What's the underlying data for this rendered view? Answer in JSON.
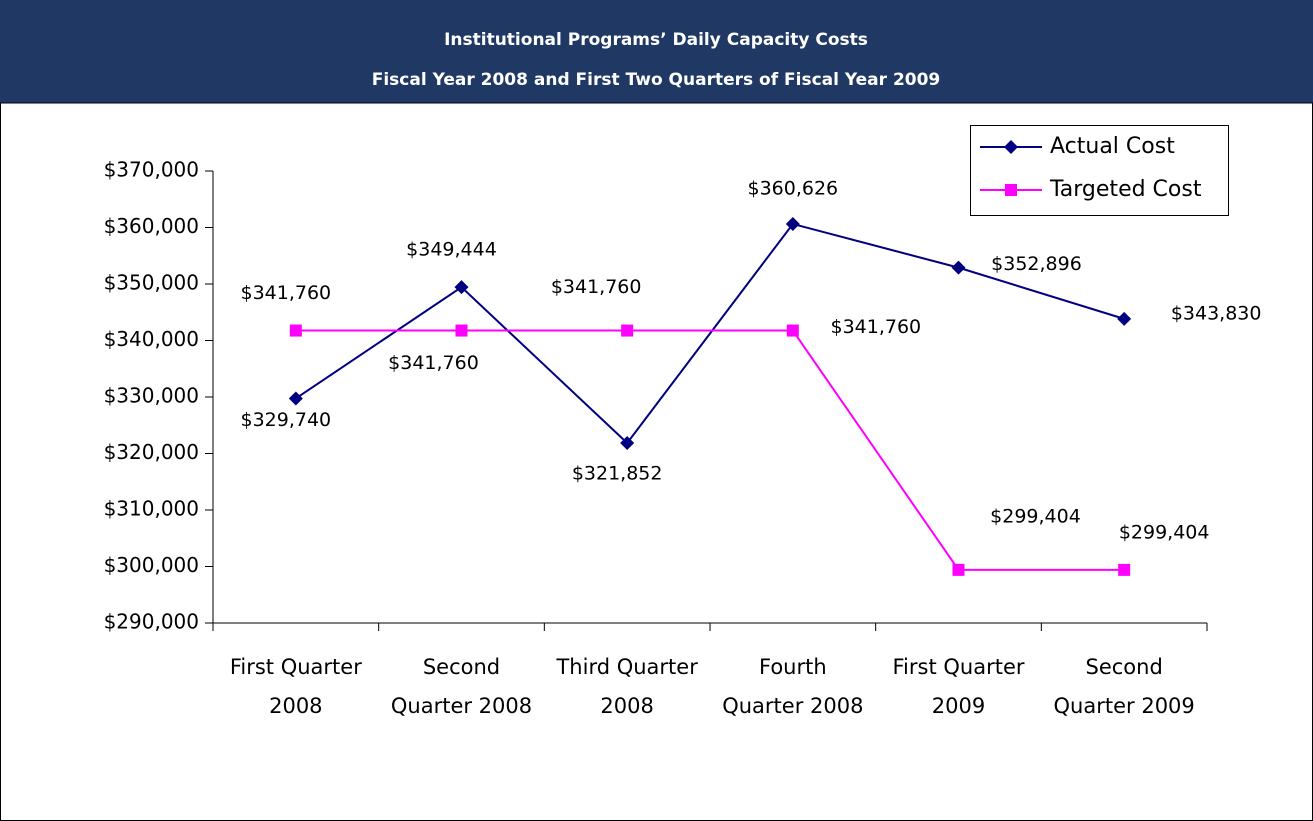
{
  "chart_data": {
    "type": "line",
    "title": "Institutional Programs’ Daily Capacity Costs",
    "subtitle": "Fiscal Year 2008 and First Two Quarters of Fiscal Year 2009",
    "categories": [
      "First Quarter 2008",
      "Second Quarter 2008",
      "Third Quarter 2008",
      "Fourth Quarter 2008",
      "First Quarter 2009",
      "Second Quarter 2009"
    ],
    "series": [
      {
        "name": "Actual Cost",
        "color": "#000080",
        "marker": "diamond",
        "values": [
          329740,
          349444,
          321852,
          360626,
          352896,
          343830
        ],
        "value_labels": [
          "$329,740",
          "$349,444",
          "$321,852",
          "$360,626",
          "$352,896",
          "$343,830"
        ]
      },
      {
        "name": "Targeted Cost",
        "color": "#ff00ff",
        "marker": "square",
        "values": [
          341760,
          341760,
          341760,
          341760,
          299404,
          299404
        ],
        "value_labels": [
          "$341,760",
          "$341,760",
          "$341,760",
          "$341,760",
          "$299,404",
          "$299,404"
        ]
      }
    ],
    "ylim": [
      290000,
      370000
    ],
    "yticks": [
      {
        "value": 290000,
        "label": "$290,000"
      },
      {
        "value": 300000,
        "label": "$300,000"
      },
      {
        "value": 310000,
        "label": "$310,000"
      },
      {
        "value": 320000,
        "label": "$320,000"
      },
      {
        "value": 330000,
        "label": "$330,000"
      },
      {
        "value": 340000,
        "label": "$340,000"
      },
      {
        "value": 350000,
        "label": "$350,000"
      },
      {
        "value": 360000,
        "label": "$360,000"
      },
      {
        "value": 370000,
        "label": "$370,000"
      }
    ],
    "legend": "top-right"
  }
}
